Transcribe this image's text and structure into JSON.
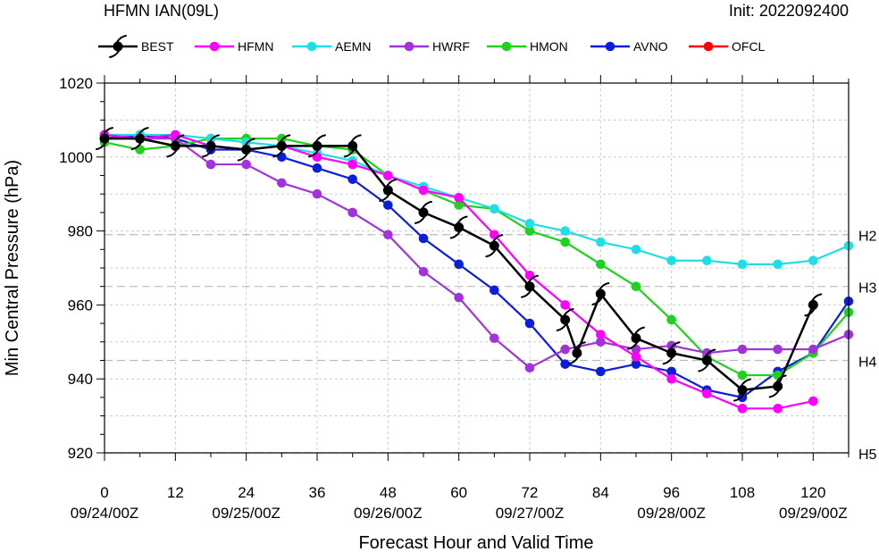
{
  "header": {
    "title": "HFMN IAN(09L)",
    "init": "Init: 2022092400"
  },
  "chart_data": {
    "type": "line",
    "xlabel": "Forecast Hour and Valid Time",
    "ylabel": "Min Central Pressure (hPa)",
    "xlim": [
      0,
      126
    ],
    "ylim": [
      920,
      1020
    ],
    "grid": true,
    "legend_position": "top",
    "x_ticks": [
      0,
      12,
      24,
      36,
      48,
      60,
      72,
      84,
      96,
      108,
      120
    ],
    "x_ticks_text": [
      "0",
      "12",
      "24",
      "36",
      "48",
      "60",
      "72",
      "84",
      "96",
      "108",
      "120"
    ],
    "valid_time_labels": [
      {
        "x": 0,
        "label": "09/24/00Z"
      },
      {
        "x": 24,
        "label": "09/25/00Z"
      },
      {
        "x": 48,
        "label": "09/26/00Z"
      },
      {
        "x": 72,
        "label": "09/27/00Z"
      },
      {
        "x": 96,
        "label": "09/28/00Z"
      },
      {
        "x": 120,
        "label": "09/29/00Z"
      }
    ],
    "y_ticks": [
      920,
      940,
      960,
      980,
      1000,
      1020
    ],
    "y_ticks_text": [
      "920",
      "940",
      "960",
      "980",
      "1000",
      "1020"
    ],
    "category_lines": [
      {
        "label": "H2",
        "value": 979
      },
      {
        "label": "H3",
        "value": 965
      },
      {
        "label": "H4",
        "value": 945
      },
      {
        "label": "H5",
        "value": 920
      }
    ],
    "series": [
      {
        "name": "BEST",
        "color": "#000000",
        "marker": "hurricane",
        "x": [
          0,
          6,
          12,
          18,
          24,
          30,
          36,
          42,
          48,
          54,
          60,
          66,
          72,
          78,
          80,
          84,
          90,
          96,
          102,
          108,
          114,
          120
        ],
        "y": [
          1005,
          1005,
          1003,
          1003,
          1002,
          1003,
          1003,
          1003,
          991,
          985,
          981,
          976,
          965,
          956,
          947,
          963,
          951,
          947,
          945,
          937,
          938,
          960
        ]
      },
      {
        "name": "HFMN",
        "color": "#ff00ff",
        "marker": "circle",
        "x": [
          0,
          6,
          12,
          18,
          24,
          30,
          36,
          42,
          48,
          54,
          60,
          66,
          72,
          78,
          84,
          90,
          96,
          102,
          108,
          114,
          120
        ],
        "y": [
          1006,
          1005,
          1006,
          1003,
          1002,
          1003,
          1000,
          998,
          995,
          991,
          989,
          979,
          968,
          960,
          952,
          946,
          940,
          936,
          932,
          932,
          934
        ]
      },
      {
        "name": "AEMN",
        "color": "#1fdfe6",
        "marker": "circle",
        "x": [
          0,
          6,
          12,
          18,
          24,
          30,
          36,
          42,
          48,
          54,
          60,
          66,
          72,
          78,
          84,
          90,
          96,
          102,
          108,
          114,
          120,
          126
        ],
        "y": [
          1006,
          1006,
          1006,
          1005,
          1004,
          1003,
          1001,
          999,
          995,
          992,
          989,
          986,
          982,
          980,
          977,
          975,
          972,
          972,
          971,
          971,
          972,
          976
        ]
      },
      {
        "name": "HWRF",
        "color": "#a233dc",
        "marker": "circle",
        "x": [
          0,
          6,
          12,
          18,
          24,
          30,
          36,
          42,
          48,
          54,
          60,
          66,
          72,
          78,
          84,
          90,
          96,
          102,
          108,
          114,
          120,
          126
        ],
        "y": [
          1006,
          1005,
          1005,
          998,
          998,
          993,
          990,
          985,
          979,
          969,
          962,
          951,
          943,
          948,
          950,
          948,
          949,
          947,
          948,
          948,
          948,
          952
        ]
      },
      {
        "name": "HMON",
        "color": "#1ed21e",
        "marker": "circle",
        "x": [
          0,
          6,
          12,
          18,
          24,
          30,
          36,
          42,
          48,
          54,
          60,
          66,
          72,
          78,
          84,
          90,
          96,
          102,
          108,
          114,
          120,
          126
        ],
        "y": [
          1004,
          1002,
          1003,
          1005,
          1005,
          1005,
          1003,
          1002,
          995,
          991,
          987,
          986,
          980,
          977,
          971,
          965,
          956,
          946,
          941,
          941,
          947,
          958
        ]
      },
      {
        "name": "AVNO",
        "color": "#0a1edc",
        "marker": "circle",
        "x": [
          0,
          6,
          12,
          18,
          24,
          30,
          36,
          42,
          48,
          54,
          60,
          66,
          72,
          78,
          84,
          90,
          96,
          102,
          108,
          114,
          120,
          126
        ],
        "y": [
          1005,
          1006,
          1005,
          1002,
          1002,
          1000,
          997,
          994,
          987,
          978,
          971,
          964,
          955,
          944,
          942,
          944,
          942,
          937,
          935,
          942,
          947,
          961
        ]
      },
      {
        "name": "OFCL",
        "color": "#ff0000",
        "marker": "circle",
        "x": [],
        "y": []
      }
    ]
  }
}
